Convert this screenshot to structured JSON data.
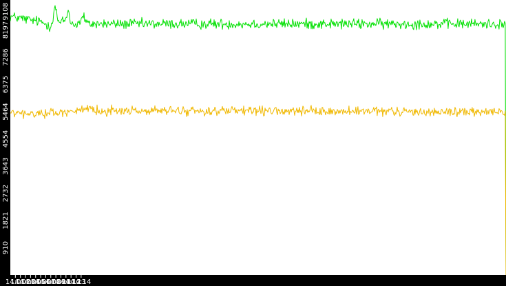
{
  "chart_data": {
    "type": "line",
    "grid": false,
    "legend": "none",
    "ylim": [
      0,
      9108
    ],
    "y_ticks": [
      "910",
      "1821",
      "2732",
      "3643",
      "4554",
      "5464",
      "6375",
      "7286",
      "8197",
      "9108"
    ],
    "x_tick_labels": [
      "14:01",
      "14:02",
      "14:03",
      "14:04",
      "14:05",
      "14:06",
      "14:07",
      "14:08",
      "14:09",
      "14:10",
      "14:11",
      "14:12",
      "14:13",
      "14:14"
    ],
    "xlim_minutes": [
      14.0,
      14.98
    ],
    "colors": {
      "axis_band": "#000000",
      "background": "#ffffff"
    },
    "series": [
      {
        "color": "#00e000",
        "sample_count": 720,
        "keypoints": [
          [
            14.0,
            8650
          ],
          [
            14.03,
            8560
          ],
          [
            14.06,
            8470
          ],
          [
            14.08,
            8320
          ],
          [
            14.085,
            8650
          ],
          [
            14.088,
            9050
          ],
          [
            14.092,
            8700
          ],
          [
            14.096,
            8400
          ],
          [
            14.1,
            8450
          ],
          [
            14.11,
            8550
          ],
          [
            14.115,
            8900
          ],
          [
            14.12,
            8400
          ],
          [
            14.13,
            8380
          ],
          [
            14.14,
            8500
          ],
          [
            14.145,
            8700
          ],
          [
            14.15,
            8400
          ],
          [
            14.98,
            8400
          ]
        ],
        "noise": 160,
        "drop_to": 0
      },
      {
        "color": "#f0b800",
        "sample_count": 720,
        "keypoints": [
          [
            14.0,
            5420
          ],
          [
            14.02,
            5400
          ],
          [
            14.04,
            5370
          ],
          [
            14.06,
            5420
          ],
          [
            14.08,
            5440
          ],
          [
            14.1,
            5410
          ],
          [
            14.12,
            5520
          ],
          [
            14.14,
            5500
          ],
          [
            14.98,
            5450
          ]
        ],
        "noise": 140,
        "drop_to": 0
      }
    ]
  }
}
